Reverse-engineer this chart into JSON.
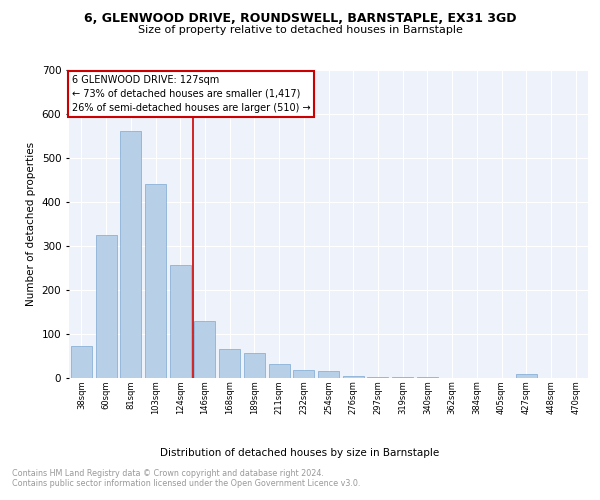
{
  "title1": "6, GLENWOOD DRIVE, ROUNDSWELL, BARNSTAPLE, EX31 3GD",
  "title2": "Size of property relative to detached houses in Barnstaple",
  "xlabel": "Distribution of detached houses by size in Barnstaple",
  "ylabel": "Number of detached properties",
  "footer": "Contains HM Land Registry data © Crown copyright and database right 2024.\nContains public sector information licensed under the Open Government Licence v3.0.",
  "annotation_title": "6 GLENWOOD DRIVE: 127sqm",
  "annotation_line1": "← 73% of detached houses are smaller (1,417)",
  "annotation_line2": "26% of semi-detached houses are larger (510) →",
  "bin_labels": [
    "38sqm",
    "60sqm",
    "81sqm",
    "103sqm",
    "124sqm",
    "146sqm",
    "168sqm",
    "189sqm",
    "211sqm",
    "232sqm",
    "254sqm",
    "276sqm",
    "297sqm",
    "319sqm",
    "340sqm",
    "362sqm",
    "384sqm",
    "405sqm",
    "427sqm",
    "448sqm",
    "470sqm"
  ],
  "bin_values": [
    72,
    325,
    562,
    440,
    257,
    128,
    65,
    55,
    30,
    18,
    14,
    3,
    2,
    2,
    2,
    0,
    0,
    0,
    8,
    0,
    0
  ],
  "bar_color": "#b8cfe8",
  "bar_edge_color": "#6699cc",
  "vline_color": "#cc0000",
  "vline_position": 4.5,
  "plot_background": "#eef2fa",
  "grid_color": "#ffffff",
  "ylim": [
    0,
    700
  ],
  "yticks": [
    0,
    100,
    200,
    300,
    400,
    500,
    600,
    700
  ]
}
